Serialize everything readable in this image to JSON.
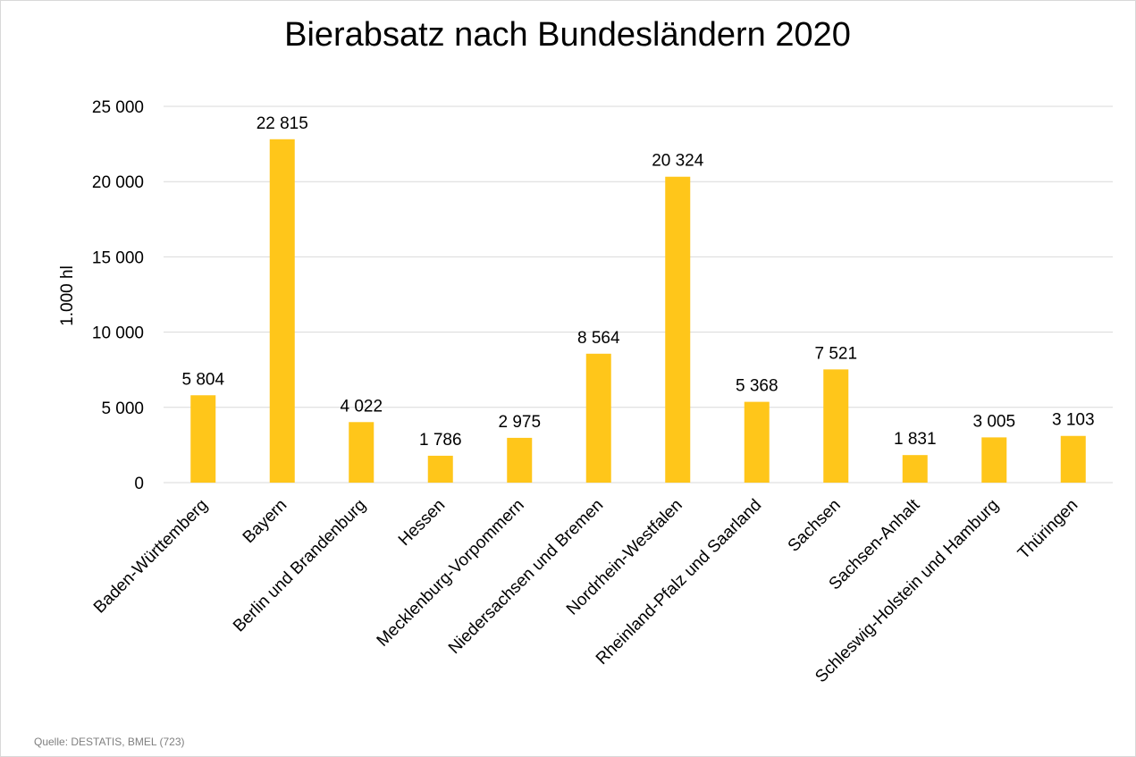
{
  "chart_data": {
    "type": "bar",
    "title": "Bierabsatz nach Bundesländern 2020",
    "ylabel": "1.000 hl",
    "xlabel": "",
    "ylim": [
      0,
      25000
    ],
    "yticks": [
      0,
      5000,
      10000,
      15000,
      20000,
      25000
    ],
    "ytick_labels": [
      "0",
      "5 000",
      "10 000",
      "15 000",
      "20 000",
      "25 000"
    ],
    "grid": true,
    "bar_color": "#FFC61A",
    "categories": [
      "Baden-Württemberg",
      "Bayern",
      "Berlin und Brandenburg",
      "Hessen",
      "Mecklenburg-Vorpommern",
      "Niedersachsen und Bremen",
      "Nordrhein-Westfalen",
      "Rheinland-Pfalz und Saarland",
      "Sachsen",
      "Sachsen-Anhalt",
      "Schleswig-Holstein und Hamburg",
      "Thüringen"
    ],
    "values": [
      5804,
      22815,
      4022,
      1786,
      2975,
      8564,
      20324,
      5368,
      7521,
      1831,
      3005,
      3103
    ],
    "data_labels": [
      "5 804",
      "22 815",
      "4 022",
      "1 786",
      "2 975",
      "8 564",
      "20 324",
      "5 368",
      "7 521",
      "1 831",
      "3 005",
      "3 103"
    ]
  },
  "source": "Quelle: DESTATIS, BMEL (723)"
}
